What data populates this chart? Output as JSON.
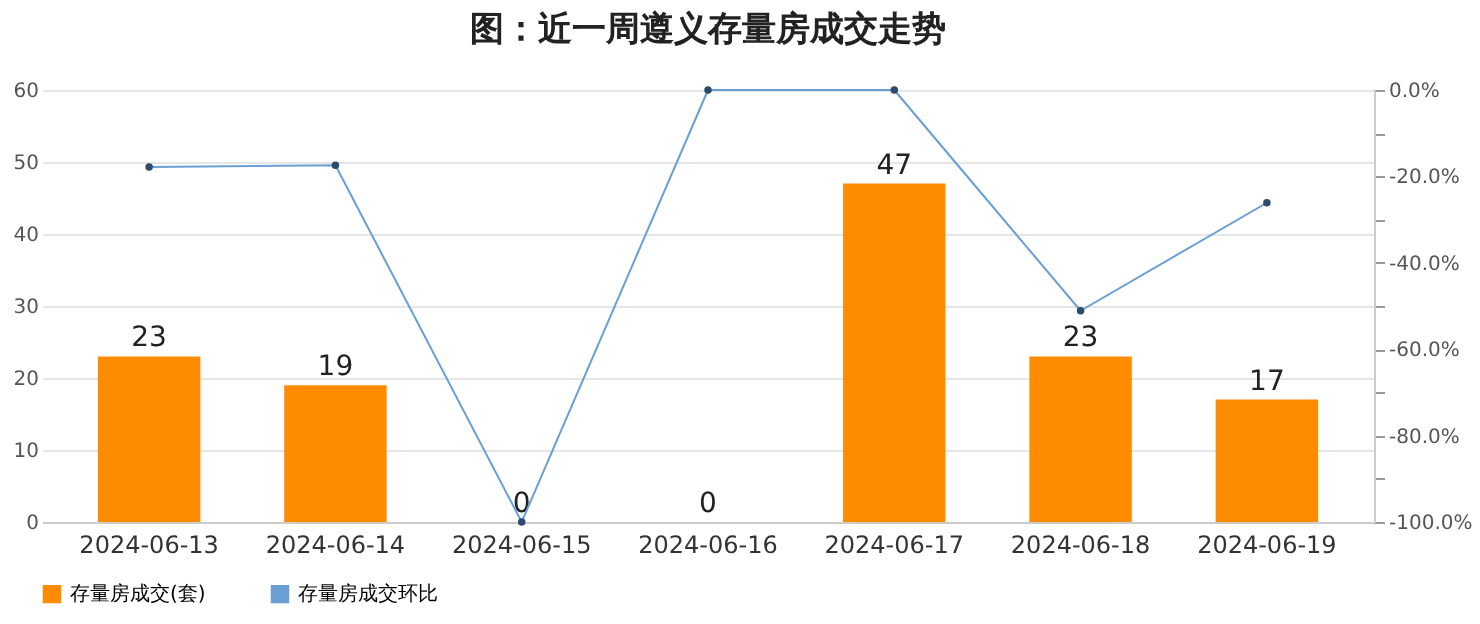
{
  "chart_data": {
    "type": "bar",
    "title": "图：近一周遵义存量房成交走势",
    "categories": [
      "2024-06-13",
      "2024-06-14",
      "2024-06-15",
      "2024-06-16",
      "2024-06-17",
      "2024-06-18",
      "2024-06-19"
    ],
    "series": [
      {
        "name": "存量房成交(套)",
        "color": "#ff8c00",
        "values": [
          23,
          19,
          0,
          0,
          47,
          23,
          17
        ],
        "value_labels": [
          "23",
          "19",
          "0",
          "0",
          "47",
          "23",
          "17"
        ]
      },
      {
        "name": "存量房成交环比",
        "type": "line",
        "axis": "y2",
        "color": "#6a9fd4",
        "marker": "circle",
        "values": [
          -17.8,
          -17.4,
          -100,
          0,
          0,
          -51.1,
          -26.1
        ]
      }
    ],
    "ylim": [
      0,
      60
    ],
    "yticks": [
      0,
      10,
      20,
      30,
      40,
      50,
      60
    ],
    "y2lim": [
      -100,
      0
    ],
    "y2ticks": [
      {
        "value": 0,
        "label": "0.0%"
      },
      {
        "value": -10,
        "label": null
      },
      {
        "value": -20,
        "label": "-20.0%"
      },
      {
        "value": -30,
        "label": null
      },
      {
        "value": -40,
        "label": "-40.0%"
      },
      {
        "value": -50,
        "label": null
      },
      {
        "value": -60,
        "label": "-60.0%"
      },
      {
        "value": -70,
        "label": null
      },
      {
        "value": -80,
        "label": "-80.0%"
      },
      {
        "value": -90,
        "label": null
      },
      {
        "value": -100,
        "label": "-100.0%"
      }
    ],
    "grid": "y",
    "legend": "bottom"
  }
}
